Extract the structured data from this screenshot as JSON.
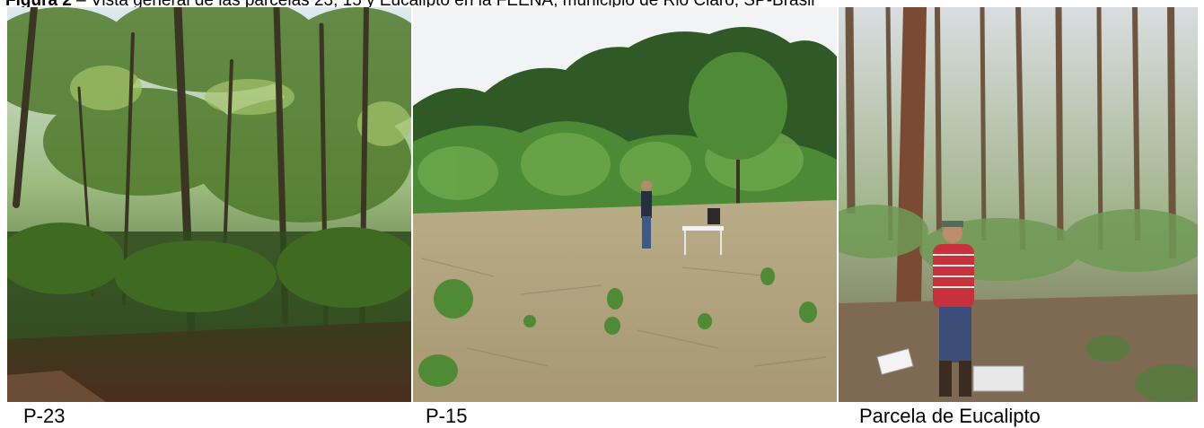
{
  "figure": {
    "caption_label": "Figura 2",
    "caption_text": " – Vista general de las parcelas 23, 15 y Eucalipto en la FEENA, municipio de Rio Claro, SP-Brasil"
  },
  "photos": [
    {
      "label": "P-23"
    },
    {
      "label": "P-15"
    },
    {
      "label": "Parcela de Eucalipto"
    }
  ]
}
